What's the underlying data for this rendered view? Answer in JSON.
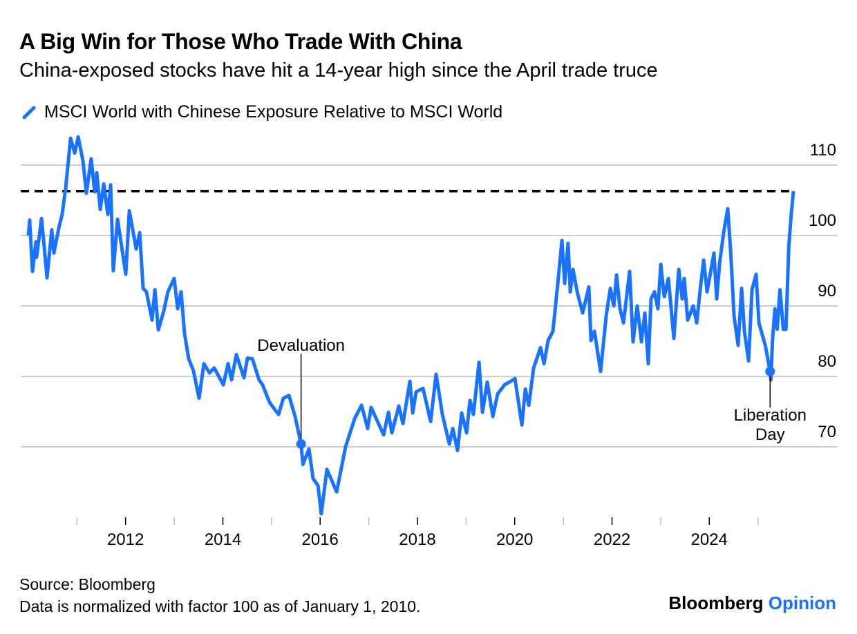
{
  "header": {
    "title": "A Big Win for Those Who Trade With China",
    "subtitle": "China-exposed stocks have hit a 14-year high since the April trade truce"
  },
  "legend": {
    "icon": "line-slash-icon",
    "label": "MSCI World with Chinese Exposure Relative to MSCI World"
  },
  "footer": {
    "source": "Source: Bloomberg",
    "note": "Data is normalized with factor 100 as of January 1, 2010.",
    "brand_main": "Bloomberg",
    "brand_accent": "Opinion"
  },
  "colors": {
    "series": "#1a73ff",
    "reference_line": "#000000",
    "grid": "#cccccc",
    "brand_accent": "#1a73ff"
  },
  "chart_data": {
    "type": "line",
    "title": "A Big Win for Those Who Trade With China",
    "subtitle": "China-exposed stocks have hit a 14-year high since the April trade truce",
    "xlabel": "",
    "ylabel": "",
    "xlim": [
      "2010-01-01",
      "2025-09-24"
    ],
    "ylim": [
      60,
      115
    ],
    "y_ticks": [
      70,
      80,
      90,
      100,
      110
    ],
    "y_axis_side": "right",
    "x_tick_labels": [
      "2012",
      "2014",
      "2016",
      "2018",
      "2020",
      "2022",
      "2024"
    ],
    "grid": "horizontal",
    "legend_position": "top-left",
    "reference_line": {
      "style": "dashed",
      "value": 106.3
    },
    "annotations": [
      {
        "label": "Devaluation",
        "date": "2015-08-11",
        "value": 70.4
      },
      {
        "label": "Liberation Day",
        "label_line1": "Liberation",
        "label_line2": "Day",
        "date": "2025-04-02",
        "value": 80.7
      }
    ],
    "series": [
      {
        "name": "MSCI World with Chinese Exposure Relative to MSCI World",
        "points": [
          [
            "2010-01-01",
            100
          ],
          [
            "2010-01-11",
            102.2
          ],
          [
            "2010-02-01",
            94.9
          ],
          [
            "2010-02-27",
            99.1
          ],
          [
            "2010-03-04",
            96.9
          ],
          [
            "2010-04-10",
            102.4
          ],
          [
            "2010-04-25",
            99.4
          ],
          [
            "2010-05-21",
            94
          ],
          [
            "2010-06-26",
            100.8
          ],
          [
            "2010-07-12",
            97.5
          ],
          [
            "2010-08-17",
            101
          ],
          [
            "2010-09-12",
            103
          ],
          [
            "2010-10-08",
            106.7
          ],
          [
            "2010-11-14",
            113.8
          ],
          [
            "2010-12-15",
            111.7
          ],
          [
            "2011-01-10",
            114
          ],
          [
            "2011-02-15",
            110.6
          ],
          [
            "2011-03-13",
            106
          ],
          [
            "2011-04-18",
            110.9
          ],
          [
            "2011-05-14",
            106.2
          ],
          [
            "2011-05-30",
            108.9
          ],
          [
            "2011-06-25",
            103.7
          ],
          [
            "2011-07-21",
            107.3
          ],
          [
            "2011-08-21",
            103
          ],
          [
            "2011-09-11",
            107.2
          ],
          [
            "2011-10-01",
            95
          ],
          [
            "2011-11-02",
            102.3
          ],
          [
            "2012-01-03",
            94.5
          ],
          [
            "2012-01-29",
            103.5
          ],
          [
            "2012-03-21",
            98.1
          ],
          [
            "2012-04-16",
            100.4
          ],
          [
            "2012-05-12",
            92.5
          ],
          [
            "2012-06-06",
            92
          ],
          [
            "2012-07-18",
            88
          ],
          [
            "2012-08-08",
            92.3
          ],
          [
            "2012-09-03",
            86.6
          ],
          [
            "2012-10-14",
            89.3
          ],
          [
            "2012-11-14",
            92
          ],
          [
            "2012-12-31",
            93.9
          ],
          [
            "2013-01-26",
            89.6
          ],
          [
            "2013-02-21",
            92
          ],
          [
            "2013-03-19",
            86.1
          ],
          [
            "2013-04-19",
            82.5
          ],
          [
            "2013-05-25",
            80.8
          ],
          [
            "2013-07-06",
            76.9
          ],
          [
            "2013-08-11",
            81.8
          ],
          [
            "2013-09-22",
            80.5
          ],
          [
            "2013-10-28",
            81.2
          ],
          [
            "2014-01-04",
            78.8
          ],
          [
            "2014-02-09",
            81.8
          ],
          [
            "2014-03-07",
            79.5
          ],
          [
            "2014-04-12",
            83.1
          ],
          [
            "2014-06-08",
            79.8
          ],
          [
            "2014-07-04",
            82.6
          ],
          [
            "2014-08-10",
            82.5
          ],
          [
            "2014-09-30",
            79.5
          ],
          [
            "2014-10-26",
            78.8
          ],
          [
            "2014-12-17",
            76.3
          ],
          [
            "2015-02-23",
            74.6
          ],
          [
            "2015-03-31",
            76.9
          ],
          [
            "2015-05-12",
            77.3
          ],
          [
            "2015-06-27",
            74.3
          ],
          [
            "2015-08-11",
            70.4
          ],
          [
            "2015-08-25",
            67.5
          ],
          [
            "2015-10-09",
            69.7
          ],
          [
            "2015-11-09",
            65.5
          ],
          [
            "2015-12-16",
            64.5
          ],
          [
            "2016-01-10",
            60.5
          ],
          [
            "2016-02-21",
            66.8
          ],
          [
            "2016-05-04",
            63.6
          ],
          [
            "2016-07-10",
            70
          ],
          [
            "2016-09-16",
            74
          ],
          [
            "2016-11-07",
            75.9
          ],
          [
            "2016-12-23",
            72.6
          ],
          [
            "2017-01-18",
            75.6
          ],
          [
            "2017-04-22",
            71.7
          ],
          [
            "2017-05-28",
            74.9
          ],
          [
            "2017-06-23",
            72
          ],
          [
            "2017-08-14",
            75.8
          ],
          [
            "2017-09-14",
            73.3
          ],
          [
            "2017-11-05",
            79.3
          ],
          [
            "2017-11-26",
            74.8
          ],
          [
            "2017-12-22",
            77.8
          ],
          [
            "2018-02-12",
            78.3
          ],
          [
            "2018-04-10",
            73.6
          ],
          [
            "2018-05-21",
            80.3
          ],
          [
            "2018-07-07",
            74.6
          ],
          [
            "2018-08-28",
            70.4
          ],
          [
            "2018-09-23",
            72.6
          ],
          [
            "2018-10-29",
            69.5
          ],
          [
            "2018-11-29",
            74.8
          ],
          [
            "2019-01-05",
            72
          ],
          [
            "2019-01-30",
            76.6
          ],
          [
            "2019-02-25",
            74.6
          ],
          [
            "2019-04-08",
            82
          ],
          [
            "2019-05-04",
            74.9
          ],
          [
            "2019-06-09",
            79.2
          ],
          [
            "2019-07-21",
            74.3
          ],
          [
            "2019-08-26",
            77.5
          ],
          [
            "2019-10-17",
            78.8
          ],
          [
            "2019-11-22",
            79.2
          ],
          [
            "2020-01-03",
            79.7
          ],
          [
            "2020-02-24",
            73.1
          ],
          [
            "2020-03-21",
            78.2
          ],
          [
            "2020-04-16",
            75.9
          ],
          [
            "2020-05-22",
            81.2
          ],
          [
            "2020-07-13",
            84.1
          ],
          [
            "2020-08-08",
            81.8
          ],
          [
            "2020-09-08",
            85.1
          ],
          [
            "2020-10-14",
            86.4
          ],
          [
            "2020-11-20",
            93.2
          ],
          [
            "2020-12-21",
            99.3
          ],
          [
            "2021-01-10",
            93.2
          ],
          [
            "2021-02-05",
            98.9
          ],
          [
            "2021-02-21",
            92
          ],
          [
            "2021-03-14",
            95.2
          ],
          [
            "2021-04-14",
            92
          ],
          [
            "2021-05-25",
            89
          ],
          [
            "2021-07-11",
            92.7
          ],
          [
            "2021-07-27",
            85.1
          ],
          [
            "2021-08-22",
            86.4
          ],
          [
            "2021-10-07",
            80.7
          ],
          [
            "2021-11-18",
            88.6
          ],
          [
            "2021-12-19",
            92.5
          ],
          [
            "2022-01-14",
            90
          ],
          [
            "2022-02-04",
            94.4
          ],
          [
            "2022-03-02",
            89.6
          ],
          [
            "2022-03-28",
            87.6
          ],
          [
            "2022-05-13",
            94.9
          ],
          [
            "2022-06-08",
            84.9
          ],
          [
            "2022-07-09",
            90
          ],
          [
            "2022-08-10",
            84.9
          ],
          [
            "2022-09-04",
            89
          ],
          [
            "2022-09-30",
            81.8
          ],
          [
            "2022-10-21",
            91
          ],
          [
            "2022-11-16",
            92
          ],
          [
            "2022-12-12",
            89.6
          ],
          [
            "2023-01-02",
            95.9
          ],
          [
            "2023-01-28",
            91.3
          ],
          [
            "2023-02-28",
            93.9
          ],
          [
            "2023-04-10",
            85.4
          ],
          [
            "2023-05-17",
            95.2
          ],
          [
            "2023-06-12",
            91
          ],
          [
            "2023-06-27",
            93.9
          ],
          [
            "2023-07-23",
            88
          ],
          [
            "2023-09-03",
            90
          ],
          [
            "2023-09-29",
            87.6
          ],
          [
            "2023-10-25",
            92.3
          ],
          [
            "2023-11-20",
            96.5
          ],
          [
            "2023-12-16",
            92
          ],
          [
            "2024-02-05",
            97.5
          ],
          [
            "2024-02-26",
            91
          ],
          [
            "2024-03-18",
            96
          ],
          [
            "2024-04-18",
            100.4
          ],
          [
            "2024-05-19",
            103.8
          ],
          [
            "2024-06-09",
            97.9
          ],
          [
            "2024-07-05",
            88.6
          ],
          [
            "2024-08-05",
            84.4
          ],
          [
            "2024-08-31",
            92.5
          ],
          [
            "2024-09-21",
            86.4
          ],
          [
            "2024-10-22",
            82.2
          ],
          [
            "2024-11-17",
            92.3
          ],
          [
            "2024-12-18",
            94.5
          ],
          [
            "2025-01-08",
            87.6
          ],
          [
            "2025-02-25",
            84.4
          ],
          [
            "2025-04-02",
            80.7
          ],
          [
            "2025-04-08",
            79.5
          ],
          [
            "2025-04-20",
            85.1
          ],
          [
            "2025-05-08",
            89.6
          ],
          [
            "2025-05-25",
            86.7
          ],
          [
            "2025-06-15",
            92.3
          ],
          [
            "2025-07-10",
            86.7
          ],
          [
            "2025-07-30",
            86.7
          ],
          [
            "2025-08-20",
            98.4
          ],
          [
            "2025-09-05",
            102.4
          ],
          [
            "2025-09-24",
            106.3
          ]
        ]
      }
    ]
  }
}
